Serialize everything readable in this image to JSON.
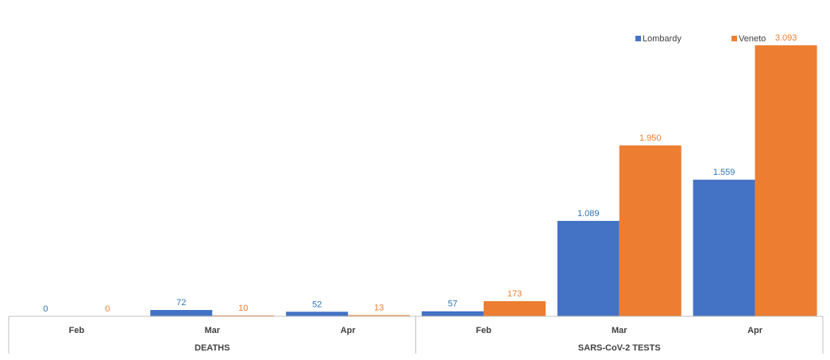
{
  "chart_data": {
    "type": "bar",
    "groups": [
      {
        "name": "DEATHS",
        "categories": [
          "Feb",
          "Mar",
          "Apr"
        ]
      },
      {
        "name": "SARS-CoV-2 TESTS",
        "categories": [
          "Feb",
          "Mar",
          "Apr"
        ]
      }
    ],
    "categories": [
      "Feb",
      "Mar",
      "Apr",
      "Feb",
      "Mar",
      "Apr"
    ],
    "series": [
      {
        "name": "Lombardy",
        "color": "#4472C4",
        "label_color": "#2E74B5",
        "values": [
          0,
          72,
          52,
          57,
          1089,
          1559
        ],
        "labels": [
          "0",
          "72",
          "52",
          "57",
          "1.089",
          "1.559"
        ]
      },
      {
        "name": "Veneto",
        "color": "#ED7D31",
        "label_color": "#ED7D31",
        "values": [
          0,
          10,
          13,
          173,
          1950,
          3093
        ],
        "labels": [
          "0",
          "10",
          "13",
          "173",
          "1.950",
          "3.093"
        ]
      }
    ],
    "ylim": [
      0,
      3093
    ],
    "legend_position": "top-right",
    "grid": false
  }
}
